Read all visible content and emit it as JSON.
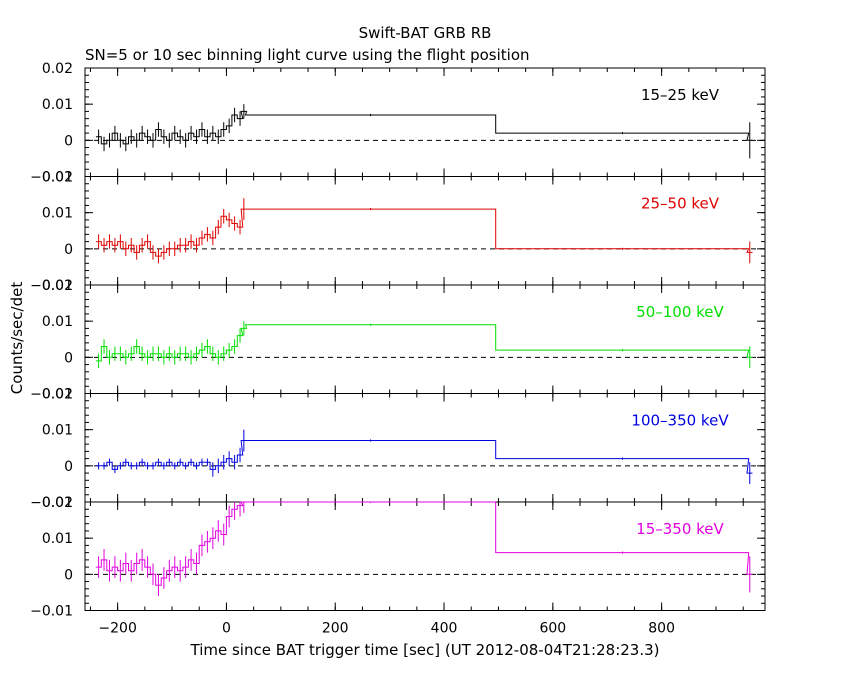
{
  "chart_data": {
    "type": "line",
    "title": "Swift-BAT GRB RB",
    "subtitle": "SN=5 or 10 sec binning light curve using the flight position",
    "xlabel": "Time since BAT trigger time [sec] (UT 2012-08-04T21:28:23.3)",
    "ylabel": "Counts/sec/det",
    "xlim": [
      -260,
      990
    ],
    "x_ticks": [
      -200,
      0,
      200,
      400,
      600,
      800
    ],
    "x_tick_labels": [
      "−200",
      "0",
      "200",
      "400",
      "600",
      "800"
    ],
    "reference_line": "dashed line at y = 0",
    "panels": [
      {
        "name": "15–25 keV",
        "color": "#000000",
        "ylim": [
          -0.01,
          0.02
        ],
        "y_ticks": [
          -0.01,
          0,
          0.01,
          0.02
        ],
        "y_tick_labels": [
          "−0.01",
          "0",
          "0.01",
          "0.02"
        ],
        "bins": [
          {
            "x": -235,
            "y": 0.001,
            "err": 0.002
          },
          {
            "x": -225,
            "y": -0.001,
            "err": 0.002
          },
          {
            "x": -215,
            "y": 0.0,
            "err": 0.002
          },
          {
            "x": -205,
            "y": 0.002,
            "err": 0.002
          },
          {
            "x": -195,
            "y": 0.0,
            "err": 0.002
          },
          {
            "x": -185,
            "y": -0.001,
            "err": 0.002
          },
          {
            "x": -175,
            "y": 0.001,
            "err": 0.002
          },
          {
            "x": -165,
            "y": 0.0,
            "err": 0.002
          },
          {
            "x": -155,
            "y": 0.002,
            "err": 0.002
          },
          {
            "x": -145,
            "y": 0.001,
            "err": 0.002
          },
          {
            "x": -135,
            "y": 0.0,
            "err": 0.002
          },
          {
            "x": -125,
            "y": 0.003,
            "err": 0.002
          },
          {
            "x": -115,
            "y": 0.001,
            "err": 0.002
          },
          {
            "x": -105,
            "y": 0.0,
            "err": 0.002
          },
          {
            "x": -95,
            "y": 0.002,
            "err": 0.002
          },
          {
            "x": -85,
            "y": 0.001,
            "err": 0.002
          },
          {
            "x": -75,
            "y": 0.0,
            "err": 0.002
          },
          {
            "x": -65,
            "y": 0.002,
            "err": 0.002
          },
          {
            "x": -55,
            "y": 0.001,
            "err": 0.002
          },
          {
            "x": -45,
            "y": 0.003,
            "err": 0.002
          },
          {
            "x": -35,
            "y": 0.001,
            "err": 0.002
          },
          {
            "x": -25,
            "y": 0.002,
            "err": 0.002
          },
          {
            "x": -15,
            "y": 0.001,
            "err": 0.002
          },
          {
            "x": -5,
            "y": 0.003,
            "err": 0.002
          },
          {
            "x": 5,
            "y": 0.004,
            "err": 0.002
          },
          {
            "x": 15,
            "y": 0.007,
            "err": 0.002
          },
          {
            "x": 25,
            "y": 0.006,
            "err": 0.002
          },
          {
            "x": 32,
            "y": 0.008,
            "err": 0.002
          },
          {
            "x": 265,
            "y": 0.007,
            "err": 0.0003,
            "x0": 35,
            "x1": 495
          },
          {
            "x": 728,
            "y": 0.002,
            "err": 0.0003,
            "x0": 495,
            "x1": 960
          },
          {
            "x": 962,
            "y": 0.0,
            "err": 0.005
          }
        ]
      },
      {
        "name": "25–50 keV",
        "color": "#e00000",
        "ylim": [
          -0.01,
          0.02
        ],
        "y_ticks": [
          -0.01,
          0,
          0.01,
          0.02
        ],
        "y_tick_labels": [
          "−0.01",
          "0",
          "0.01",
          "0.02"
        ],
        "bins": [
          {
            "x": -235,
            "y": 0.002,
            "err": 0.002
          },
          {
            "x": -225,
            "y": 0.001,
            "err": 0.002
          },
          {
            "x": -215,
            "y": 0.002,
            "err": 0.002
          },
          {
            "x": -205,
            "y": 0.001,
            "err": 0.002
          },
          {
            "x": -195,
            "y": 0.002,
            "err": 0.002
          },
          {
            "x": -185,
            "y": 0.0,
            "err": 0.002
          },
          {
            "x": -175,
            "y": 0.001,
            "err": 0.002
          },
          {
            "x": -165,
            "y": -0.001,
            "err": 0.002
          },
          {
            "x": -155,
            "y": 0.001,
            "err": 0.002
          },
          {
            "x": -145,
            "y": 0.002,
            "err": 0.002
          },
          {
            "x": -135,
            "y": -0.001,
            "err": 0.002
          },
          {
            "x": -125,
            "y": -0.002,
            "err": 0.002
          },
          {
            "x": -115,
            "y": -0.001,
            "err": 0.002
          },
          {
            "x": -105,
            "y": 0.0,
            "err": 0.002
          },
          {
            "x": -95,
            "y": 0.0,
            "err": 0.002
          },
          {
            "x": -85,
            "y": 0.001,
            "err": 0.002
          },
          {
            "x": -75,
            "y": 0.001,
            "err": 0.002
          },
          {
            "x": -65,
            "y": 0.002,
            "err": 0.002
          },
          {
            "x": -55,
            "y": 0.001,
            "err": 0.002
          },
          {
            "x": -45,
            "y": 0.003,
            "err": 0.002
          },
          {
            "x": -35,
            "y": 0.004,
            "err": 0.002
          },
          {
            "x": -25,
            "y": 0.003,
            "err": 0.002
          },
          {
            "x": -15,
            "y": 0.006,
            "err": 0.002
          },
          {
            "x": -5,
            "y": 0.009,
            "err": 0.002
          },
          {
            "x": 5,
            "y": 0.008,
            "err": 0.002
          },
          {
            "x": 15,
            "y": 0.007,
            "err": 0.002
          },
          {
            "x": 25,
            "y": 0.006,
            "err": 0.002
          },
          {
            "x": 32,
            "y": 0.011,
            "err": 0.003
          },
          {
            "x": 265,
            "y": 0.011,
            "err": 0.0003,
            "x0": 35,
            "x1": 495
          },
          {
            "x": 728,
            "y": 0.0,
            "err": 0.0003,
            "x0": 495,
            "x1": 960
          },
          {
            "x": 962,
            "y": -0.001,
            "err": 0.003
          }
        ]
      },
      {
        "name": "50–100 keV",
        "color": "#00e000",
        "ylim": [
          -0.01,
          0.02
        ],
        "y_ticks": [
          -0.01,
          0,
          0.01,
          0.02
        ],
        "y_tick_labels": [
          "−0.01",
          "0",
          "0.01",
          "0.02"
        ],
        "bins": [
          {
            "x": -235,
            "y": -0.001,
            "err": 0.002
          },
          {
            "x": -225,
            "y": 0.003,
            "err": 0.002
          },
          {
            "x": -215,
            "y": 0.0,
            "err": 0.002
          },
          {
            "x": -205,
            "y": 0.001,
            "err": 0.002
          },
          {
            "x": -195,
            "y": 0.001,
            "err": 0.002
          },
          {
            "x": -185,
            "y": 0.0,
            "err": 0.002
          },
          {
            "x": -175,
            "y": 0.001,
            "err": 0.002
          },
          {
            "x": -165,
            "y": 0.003,
            "err": 0.002
          },
          {
            "x": -155,
            "y": 0.001,
            "err": 0.002
          },
          {
            "x": -145,
            "y": 0.0,
            "err": 0.002
          },
          {
            "x": -135,
            "y": 0.001,
            "err": 0.002
          },
          {
            "x": -125,
            "y": 0.001,
            "err": 0.002
          },
          {
            "x": -115,
            "y": 0.0,
            "err": 0.002
          },
          {
            "x": -105,
            "y": 0.001,
            "err": 0.002
          },
          {
            "x": -95,
            "y": 0.0,
            "err": 0.002
          },
          {
            "x": -85,
            "y": 0.001,
            "err": 0.002
          },
          {
            "x": -75,
            "y": 0.001,
            "err": 0.002
          },
          {
            "x": -65,
            "y": 0.0,
            "err": 0.002
          },
          {
            "x": -55,
            "y": 0.001,
            "err": 0.002
          },
          {
            "x": -45,
            "y": 0.002,
            "err": 0.002
          },
          {
            "x": -35,
            "y": 0.003,
            "err": 0.002
          },
          {
            "x": -25,
            "y": 0.001,
            "err": 0.002
          },
          {
            "x": -15,
            "y": 0.0,
            "err": 0.002
          },
          {
            "x": -5,
            "y": 0.001,
            "err": 0.002
          },
          {
            "x": 5,
            "y": 0.002,
            "err": 0.002
          },
          {
            "x": 15,
            "y": 0.003,
            "err": 0.002
          },
          {
            "x": 25,
            "y": 0.006,
            "err": 0.002
          },
          {
            "x": 32,
            "y": 0.008,
            "err": 0.002
          },
          {
            "x": 265,
            "y": 0.009,
            "err": 0.0003,
            "x0": 35,
            "x1": 495
          },
          {
            "x": 728,
            "y": 0.002,
            "err": 0.0003,
            "x0": 495,
            "x1": 960
          },
          {
            "x": 962,
            "y": 0.0,
            "err": 0.003
          }
        ]
      },
      {
        "name": "100–350 keV",
        "color": "#0000e0",
        "ylim": [
          -0.01,
          0.02
        ],
        "y_ticks": [
          -0.01,
          0,
          0.01,
          0.02
        ],
        "y_tick_labels": [
          "−0.01",
          "0",
          "0.01",
          "0.02"
        ],
        "bins": [
          {
            "x": -235,
            "y": 0.0,
            "err": 0.001
          },
          {
            "x": -225,
            "y": 0.0,
            "err": 0.001
          },
          {
            "x": -215,
            "y": 0.001,
            "err": 0.001
          },
          {
            "x": -205,
            "y": -0.001,
            "err": 0.001
          },
          {
            "x": -195,
            "y": 0.0,
            "err": 0.001
          },
          {
            "x": -185,
            "y": 0.001,
            "err": 0.001
          },
          {
            "x": -175,
            "y": 0.0,
            "err": 0.001
          },
          {
            "x": -165,
            "y": 0.0,
            "err": 0.001
          },
          {
            "x": -155,
            "y": 0.001,
            "err": 0.001
          },
          {
            "x": -145,
            "y": 0.0,
            "err": 0.001
          },
          {
            "x": -135,
            "y": 0.0,
            "err": 0.001
          },
          {
            "x": -125,
            "y": 0.001,
            "err": 0.001
          },
          {
            "x": -115,
            "y": 0.0,
            "err": 0.001
          },
          {
            "x": -105,
            "y": 0.001,
            "err": 0.001
          },
          {
            "x": -95,
            "y": 0.0,
            "err": 0.001
          },
          {
            "x": -85,
            "y": 0.001,
            "err": 0.001
          },
          {
            "x": -75,
            "y": 0.0,
            "err": 0.001
          },
          {
            "x": -65,
            "y": 0.001,
            "err": 0.001
          },
          {
            "x": -55,
            "y": 0.0,
            "err": 0.001
          },
          {
            "x": -45,
            "y": 0.001,
            "err": 0.001
          },
          {
            "x": -35,
            "y": 0.001,
            "err": 0.001
          },
          {
            "x": -25,
            "y": -0.001,
            "err": 0.002
          },
          {
            "x": -15,
            "y": 0.0,
            "err": 0.002
          },
          {
            "x": -5,
            "y": 0.001,
            "err": 0.002
          },
          {
            "x": 5,
            "y": 0.002,
            "err": 0.002
          },
          {
            "x": 15,
            "y": 0.001,
            "err": 0.002
          },
          {
            "x": 25,
            "y": 0.003,
            "err": 0.002
          },
          {
            "x": 32,
            "y": 0.007,
            "err": 0.003
          },
          {
            "x": 265,
            "y": 0.007,
            "err": 0.0003,
            "x0": 35,
            "x1": 495
          },
          {
            "x": 728,
            "y": 0.002,
            "err": 0.0003,
            "x0": 495,
            "x1": 960
          },
          {
            "x": 962,
            "y": -0.002,
            "err": 0.003
          }
        ]
      },
      {
        "name": "15–350 keV",
        "color": "#e000e0",
        "ylim": [
          -0.01,
          0.02
        ],
        "y_ticks": [
          -0.01,
          0,
          0.01,
          0.02
        ],
        "y_tick_labels": [
          "−0.01",
          "0",
          "0.01",
          "0.02"
        ],
        "bins": [
          {
            "x": -235,
            "y": 0.002,
            "err": 0.003
          },
          {
            "x": -225,
            "y": 0.004,
            "err": 0.003
          },
          {
            "x": -215,
            "y": 0.001,
            "err": 0.003
          },
          {
            "x": -205,
            "y": 0.002,
            "err": 0.003
          },
          {
            "x": -195,
            "y": 0.001,
            "err": 0.003
          },
          {
            "x": -185,
            "y": 0.003,
            "err": 0.003
          },
          {
            "x": -175,
            "y": 0.001,
            "err": 0.003
          },
          {
            "x": -165,
            "y": 0.003,
            "err": 0.003
          },
          {
            "x": -155,
            "y": 0.004,
            "err": 0.003
          },
          {
            "x": -145,
            "y": 0.002,
            "err": 0.003
          },
          {
            "x": -135,
            "y": 0.0,
            "err": 0.003
          },
          {
            "x": -125,
            "y": -0.003,
            "err": 0.003
          },
          {
            "x": -115,
            "y": -0.001,
            "err": 0.003
          },
          {
            "x": -105,
            "y": 0.001,
            "err": 0.003
          },
          {
            "x": -95,
            "y": 0.002,
            "err": 0.003
          },
          {
            "x": -85,
            "y": 0.001,
            "err": 0.003
          },
          {
            "x": -75,
            "y": 0.002,
            "err": 0.003
          },
          {
            "x": -65,
            "y": 0.004,
            "err": 0.003
          },
          {
            "x": -55,
            "y": 0.003,
            "err": 0.003
          },
          {
            "x": -45,
            "y": 0.008,
            "err": 0.003
          },
          {
            "x": -35,
            "y": 0.009,
            "err": 0.003
          },
          {
            "x": -25,
            "y": 0.01,
            "err": 0.003
          },
          {
            "x": -15,
            "y": 0.012,
            "err": 0.003
          },
          {
            "x": -5,
            "y": 0.011,
            "err": 0.003
          },
          {
            "x": 5,
            "y": 0.016,
            "err": 0.003
          },
          {
            "x": 15,
            "y": 0.018,
            "err": 0.003
          },
          {
            "x": 25,
            "y": 0.019,
            "err": 0.003
          },
          {
            "x": 32,
            "y": 0.02,
            "err": 0.003
          },
          {
            "x": 265,
            "y": 0.02,
            "err": 0.0003,
            "x0": 35,
            "x1": 495
          },
          {
            "x": 728,
            "y": 0.006,
            "err": 0.0003,
            "x0": 495,
            "x1": 960
          },
          {
            "x": 962,
            "y": 0.0,
            "err": 0.005
          }
        ]
      }
    ]
  }
}
